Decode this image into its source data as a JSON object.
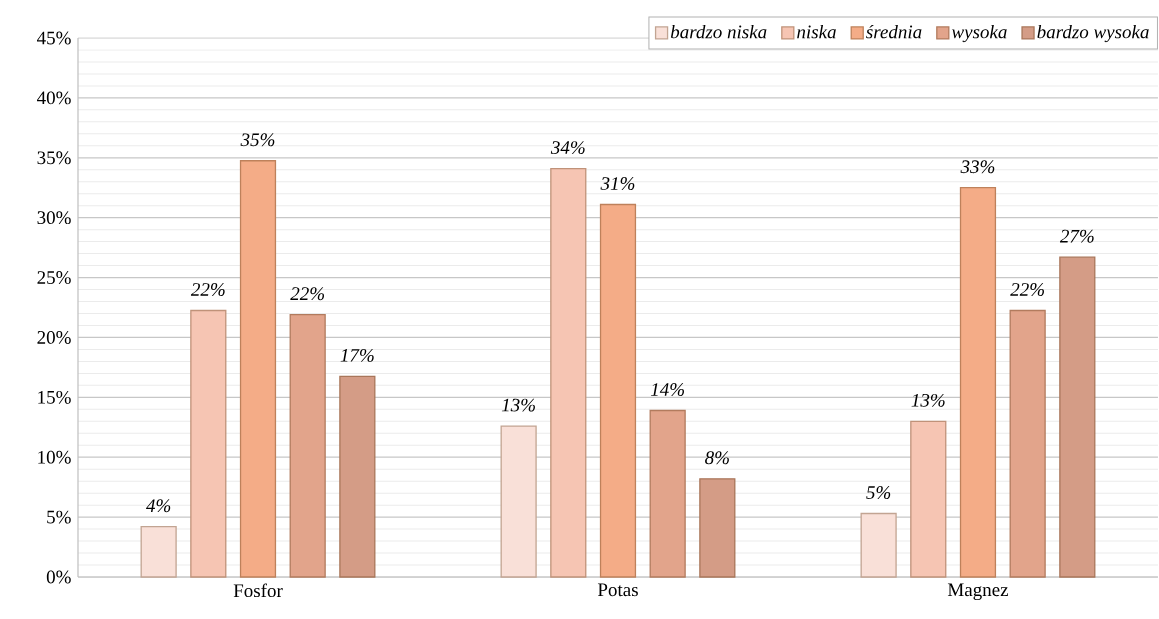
{
  "chart_data": {
    "type": "bar",
    "categories": [
      "Fosfor",
      "Potas",
      "Magnez"
    ],
    "series": [
      {
        "name": "bardzo niska",
        "color": "#f9e0d8",
        "values": [
          4.2,
          12.6,
          5.3
        ],
        "value_labels": [
          "4%",
          "13%",
          "5%"
        ]
      },
      {
        "name": "niska",
        "color": "#f6c5b3",
        "values": [
          22.25,
          34.1,
          13.0
        ],
        "value_labels": [
          "22%",
          "34%",
          "13%"
        ]
      },
      {
        "name": "średnia",
        "color": "#f4ac87",
        "values": [
          34.75,
          31.1,
          32.5
        ],
        "value_labels": [
          "35%",
          "31%",
          "33%"
        ]
      },
      {
        "name": "wysoka",
        "color": "#e2a48b",
        "values": [
          21.9,
          13.9,
          22.25
        ],
        "value_labels": [
          "22%",
          "14%",
          "22%"
        ]
      },
      {
        "name": "bardzo wysoka",
        "color": "#d49c86",
        "values": [
          16.75,
          8.2,
          26.7
        ],
        "value_labels": [
          "17%",
          "8%",
          "27%"
        ]
      }
    ],
    "ylim": [
      0,
      45
    ],
    "yticks": [
      {
        "value": 0,
        "label": "0%"
      },
      {
        "value": 5,
        "label": "5%"
      },
      {
        "value": 10,
        "label": "10%"
      },
      {
        "value": 15,
        "label": "15%"
      },
      {
        "value": 20,
        "label": "20%"
      },
      {
        "value": 25,
        "label": "25%"
      },
      {
        "value": 30,
        "label": "30%"
      },
      {
        "value": 35,
        "label": "35%"
      },
      {
        "value": 40,
        "label": "40%"
      },
      {
        "value": 45,
        "label": "45%"
      }
    ],
    "grid": "y",
    "legend": "top right"
  }
}
